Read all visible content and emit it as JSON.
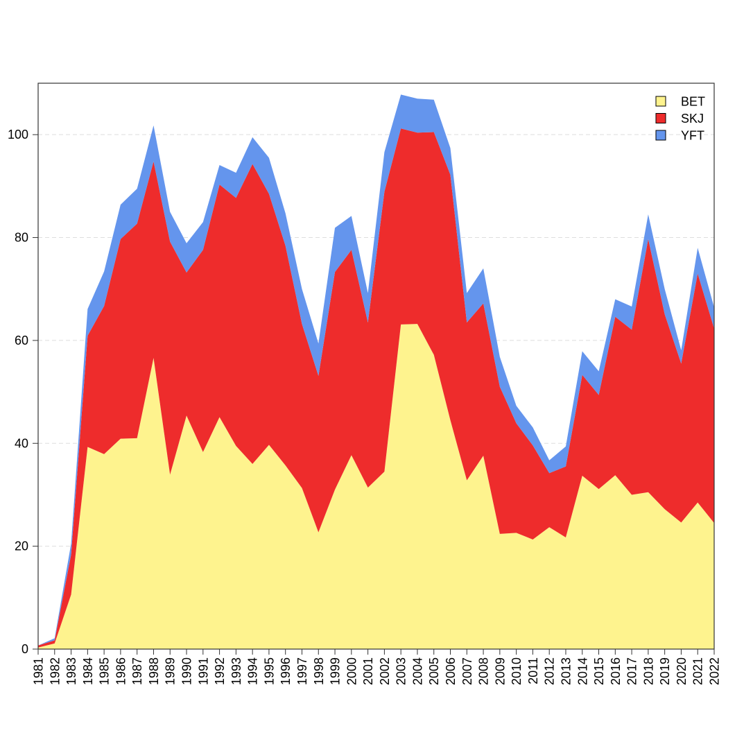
{
  "chart_data": {
    "type": "area",
    "stacked": true,
    "title": "",
    "xlabel": "",
    "ylabel": "",
    "x": [
      "1981",
      "1982",
      "1983",
      "1984",
      "1985",
      "1986",
      "1987",
      "1988",
      "1989",
      "1990",
      "1991",
      "1992",
      "1993",
      "1994",
      "1995",
      "1996",
      "1997",
      "1998",
      "1999",
      "2000",
      "2001",
      "2002",
      "2003",
      "2004",
      "2005",
      "2006",
      "2007",
      "2008",
      "2009",
      "2010",
      "2011",
      "2012",
      "2013",
      "2014",
      "2015",
      "2016",
      "2017",
      "2018",
      "2019",
      "2020",
      "2021",
      "2022"
    ],
    "ylim": [
      0,
      110
    ],
    "yticks": [
      "0",
      "20",
      "40",
      "60",
      "80",
      "100"
    ],
    "grid": "horizontal dashed",
    "legend_position": "top-right",
    "series": [
      {
        "name": "BET",
        "color": "#fef38e",
        "values": [
          0.3,
          1.1,
          10.6,
          39.3,
          37.9,
          40.9,
          41.0,
          56.6,
          33.9,
          45.4,
          38.3,
          45.1,
          39.5,
          36.0,
          39.7,
          35.7,
          31.3,
          22.7,
          31.0,
          37.7,
          31.4,
          34.5,
          63.1,
          63.2,
          57.2,
          44.5,
          32.8,
          37.6,
          22.4,
          22.6,
          21.3,
          23.7,
          21.7,
          33.7,
          31.1,
          33.8,
          30.0,
          30.5,
          27.2,
          24.6,
          28.5,
          24.5
        ]
      },
      {
        "name": "SKJ",
        "color": "#ee2c2c",
        "values": [
          0.4,
          0.6,
          7.8,
          21.6,
          28.8,
          38.8,
          41.7,
          38.2,
          45.3,
          27.8,
          39.3,
          45.2,
          48.2,
          58.3,
          48.8,
          42.7,
          31.9,
          30.4,
          42.3,
          39.9,
          32.1,
          54.4,
          38.1,
          37.2,
          43.3,
          47.7,
          30.7,
          29.6,
          28.6,
          21.3,
          18.3,
          10.5,
          13.8,
          19.6,
          18.3,
          30.8,
          32.1,
          49.2,
          37.9,
          30.9,
          44.5,
          37.8
        ]
      },
      {
        "name": "YFT",
        "color": "#6495ed",
        "values": [
          0.0,
          0.4,
          2.1,
          5.2,
          6.7,
          6.7,
          6.8,
          7.0,
          5.8,
          5.7,
          5.4,
          3.8,
          4.9,
          5.2,
          7.0,
          6.3,
          6.8,
          6.3,
          8.6,
          6.6,
          5.7,
          7.7,
          6.6,
          6.6,
          6.3,
          5.2,
          5.7,
          6.8,
          5.8,
          3.4,
          3.5,
          2.5,
          3.9,
          4.6,
          4.6,
          3.4,
          4.5,
          4.8,
          4.9,
          2.6,
          5.0,
          4.1
        ]
      }
    ]
  }
}
